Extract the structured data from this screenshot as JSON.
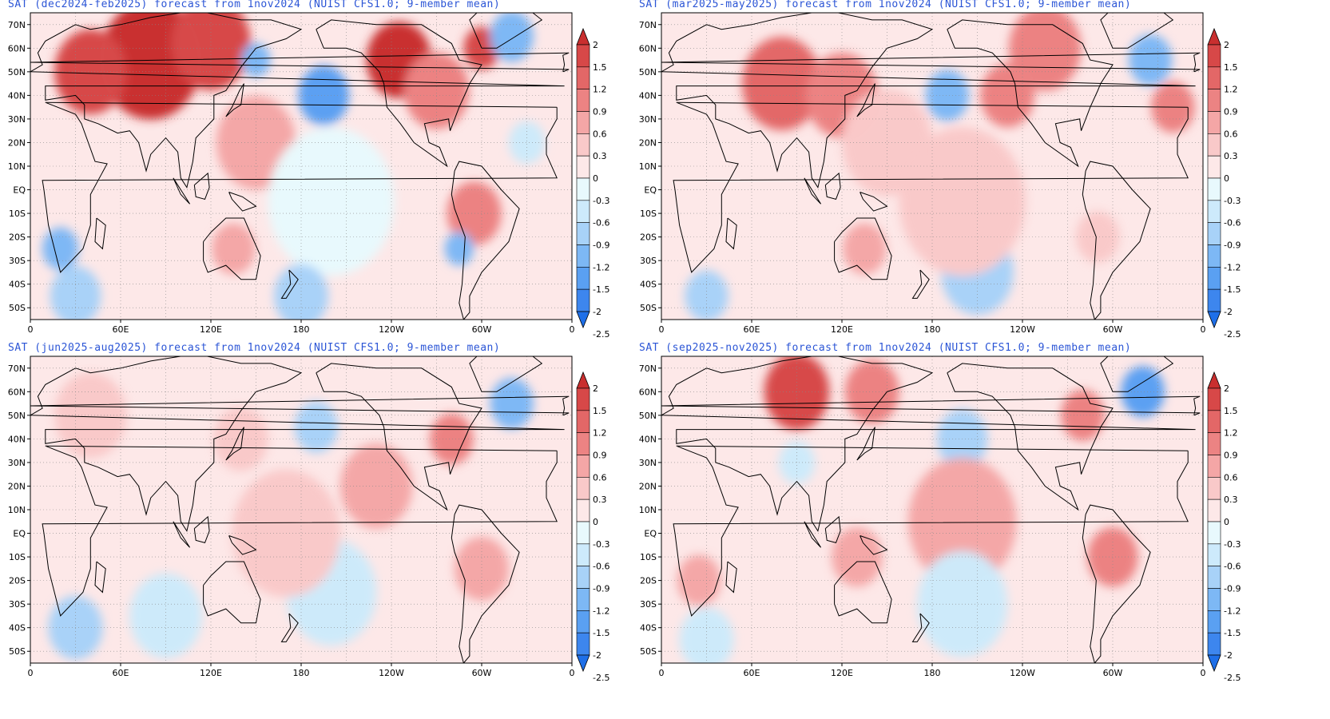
{
  "colors": {
    "title": "#2b55d6",
    "coast": "#000000",
    "levels": [
      "#1e6fe8",
      "#3d86ee",
      "#5aa0f2",
      "#7db8f5",
      "#a8d2f8",
      "#cdeafb",
      "#e8f9fd",
      "#fde8e8",
      "#f9c9c9",
      "#f4a6a6",
      "#ec8383",
      "#e36767",
      "#d74848",
      "#c92f2f"
    ]
  },
  "colorbar": {
    "ticks": [
      "2",
      "1.5",
      "1.2",
      "0.9",
      "0.6",
      "0.3",
      "0",
      "-0.3",
      "-0.6",
      "-0.9",
      "-1.2",
      "-1.5",
      "-2",
      "-2.5"
    ]
  },
  "axes": {
    "lat_labels": [
      "70N",
      "60N",
      "50N",
      "40N",
      "30N",
      "20N",
      "10N",
      "EQ",
      "10S",
      "20S",
      "30S",
      "40S",
      "50S"
    ],
    "lon_labels": [
      "0",
      "60E",
      "120E",
      "180",
      "120W",
      "60W",
      "0"
    ]
  },
  "panels": [
    {
      "title": "SAT (dec2024-feb2025) forecast from 1nov2024 (NUIST CFS1.0; 9-member mean)",
      "anomalies": [
        {
          "lon": 80,
          "lat": 55,
          "v": 2.0,
          "r": 28
        },
        {
          "lon": 120,
          "lat": 62,
          "v": 1.6,
          "r": 22
        },
        {
          "lon": 40,
          "lat": 50,
          "v": 1.5,
          "r": 20
        },
        {
          "lon": 245,
          "lat": 55,
          "v": 2.0,
          "r": 18
        },
        {
          "lon": 270,
          "lat": 42,
          "v": 1.0,
          "r": 18
        },
        {
          "lon": 300,
          "lat": 60,
          "v": 1.6,
          "r": 10
        },
        {
          "lon": 195,
          "lat": 40,
          "v": -1.3,
          "r": 14
        },
        {
          "lon": 150,
          "lat": 55,
          "v": -1.0,
          "r": 8
        },
        {
          "lon": 320,
          "lat": 65,
          "v": -1.2,
          "r": 12
        },
        {
          "lon": 150,
          "lat": 20,
          "v": 0.7,
          "r": 22
        },
        {
          "lon": 295,
          "lat": -10,
          "v": 1.0,
          "r": 15
        },
        {
          "lon": 285,
          "lat": -25,
          "v": -1.0,
          "r": 8
        },
        {
          "lon": 20,
          "lat": -25,
          "v": -1.0,
          "r": 10
        },
        {
          "lon": 30,
          "lat": -45,
          "v": -0.8,
          "r": 14
        },
        {
          "lon": 200,
          "lat": -5,
          "v": -0.3,
          "r": 35
        },
        {
          "lon": 135,
          "lat": -25,
          "v": 0.8,
          "r": 12
        },
        {
          "lon": 330,
          "lat": 20,
          "v": -0.6,
          "r": 10
        },
        {
          "lon": 180,
          "lat": -45,
          "v": -0.8,
          "r": 15
        }
      ]
    },
    {
      "title": "SAT (mar2025-may2025) forecast from 1nov2024 (NUIST CFS1.0; 9-member mean)",
      "anomalies": [
        {
          "lon": 80,
          "lat": 45,
          "v": 1.3,
          "r": 22
        },
        {
          "lon": 120,
          "lat": 40,
          "v": 0.9,
          "r": 20
        },
        {
          "lon": 230,
          "lat": 40,
          "v": 1.0,
          "r": 15
        },
        {
          "lon": 255,
          "lat": 60,
          "v": 1.0,
          "r": 20
        },
        {
          "lon": 190,
          "lat": 40,
          "v": -1.0,
          "r": 12
        },
        {
          "lon": 325,
          "lat": 55,
          "v": -1.2,
          "r": 12
        },
        {
          "lon": 340,
          "lat": 35,
          "v": 0.9,
          "r": 12
        },
        {
          "lon": 150,
          "lat": 20,
          "v": 0.5,
          "r": 25
        },
        {
          "lon": 135,
          "lat": -25,
          "v": 0.8,
          "r": 12
        },
        {
          "lon": 210,
          "lat": -35,
          "v": -0.7,
          "r": 20
        },
        {
          "lon": 30,
          "lat": -45,
          "v": -0.7,
          "r": 12
        },
        {
          "lon": 290,
          "lat": -20,
          "v": 0.5,
          "r": 12
        },
        {
          "lon": 200,
          "lat": -5,
          "v": 0.3,
          "r": 35
        }
      ]
    },
    {
      "title": "SAT (jun2025-aug2025) forecast from 1nov2024 (NUIST CFS1.0; 9-member mean)",
      "anomalies": [
        {
          "lon": 190,
          "lat": 45,
          "v": -0.9,
          "r": 12
        },
        {
          "lon": 320,
          "lat": 55,
          "v": -1.2,
          "r": 12
        },
        {
          "lon": 280,
          "lat": 40,
          "v": 0.9,
          "r": 12
        },
        {
          "lon": 230,
          "lat": 20,
          "v": 0.6,
          "r": 20
        },
        {
          "lon": 40,
          "lat": 50,
          "v": 0.5,
          "r": 20
        },
        {
          "lon": 300,
          "lat": -15,
          "v": 0.7,
          "r": 15
        },
        {
          "lon": 200,
          "lat": -25,
          "v": -0.6,
          "r": 25
        },
        {
          "lon": 30,
          "lat": -40,
          "v": -0.7,
          "r": 15
        },
        {
          "lon": 170,
          "lat": 0,
          "v": 0.4,
          "r": 30
        },
        {
          "lon": 90,
          "lat": -35,
          "v": -0.6,
          "r": 20
        },
        {
          "lon": 140,
          "lat": 40,
          "v": 0.5,
          "r": 15
        }
      ]
    },
    {
      "title": "SAT (sep2025-nov2025) forecast from 1nov2024 (NUIST CFS1.0; 9-member mean)",
      "anomalies": [
        {
          "lon": 90,
          "lat": 60,
          "v": 1.5,
          "r": 18
        },
        {
          "lon": 140,
          "lat": 60,
          "v": 1.0,
          "r": 15
        },
        {
          "lon": 280,
          "lat": 50,
          "v": 1.0,
          "r": 12
        },
        {
          "lon": 320,
          "lat": 60,
          "v": -1.3,
          "r": 12
        },
        {
          "lon": 200,
          "lat": 40,
          "v": -0.7,
          "r": 14
        },
        {
          "lon": 90,
          "lat": 30,
          "v": -0.4,
          "r": 10
        },
        {
          "lon": 200,
          "lat": 5,
          "v": 0.6,
          "r": 30
        },
        {
          "lon": 300,
          "lat": -10,
          "v": 0.9,
          "r": 14
        },
        {
          "lon": 25,
          "lat": -20,
          "v": 0.8,
          "r": 12
        },
        {
          "lon": 200,
          "lat": -30,
          "v": -0.5,
          "r": 25
        },
        {
          "lon": 130,
          "lat": -10,
          "v": 0.8,
          "r": 14
        },
        {
          "lon": 30,
          "lat": -45,
          "v": -0.5,
          "r": 15
        }
      ]
    }
  ]
}
